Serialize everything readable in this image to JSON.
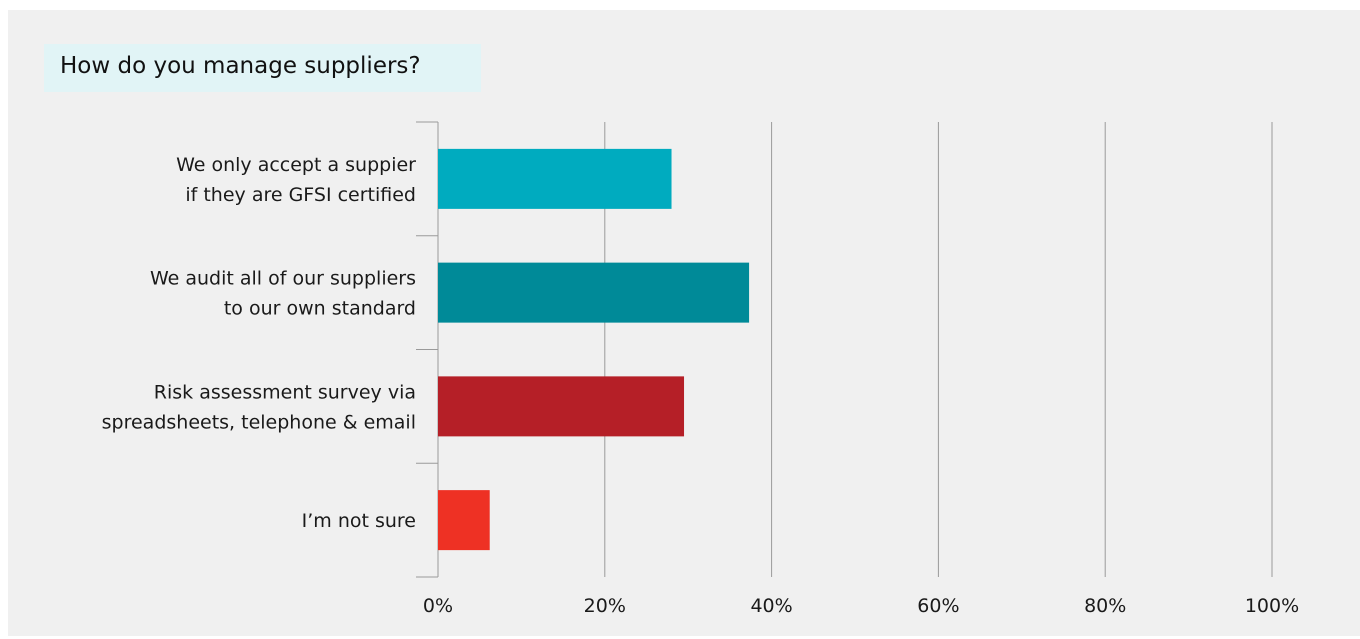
{
  "chart_data": {
    "type": "bar",
    "orientation": "horizontal",
    "title": "How do you manage suppliers?",
    "xlabel": "",
    "ylabel": "",
    "xlim": [
      0,
      100
    ],
    "grid": true,
    "categories": [
      [
        "We only accept a suppier",
        "if they are GFSI certified"
      ],
      [
        "We audit all of our suppliers",
        "to our own standard"
      ],
      [
        "Risk assessment survey via",
        "spreadsheets, telephone & email"
      ],
      [
        "I’m not sure"
      ]
    ],
    "values": [
      28,
      37.3,
      29.5,
      6.2
    ],
    "colors": [
      "#00abbf",
      "#008a98",
      "#b51f27",
      "#ee3124"
    ],
    "ticks": [
      0,
      20,
      40,
      60,
      80,
      100
    ],
    "tick_labels": [
      "0%",
      "20%",
      "40%",
      "60%",
      "80%",
      "100%"
    ]
  }
}
